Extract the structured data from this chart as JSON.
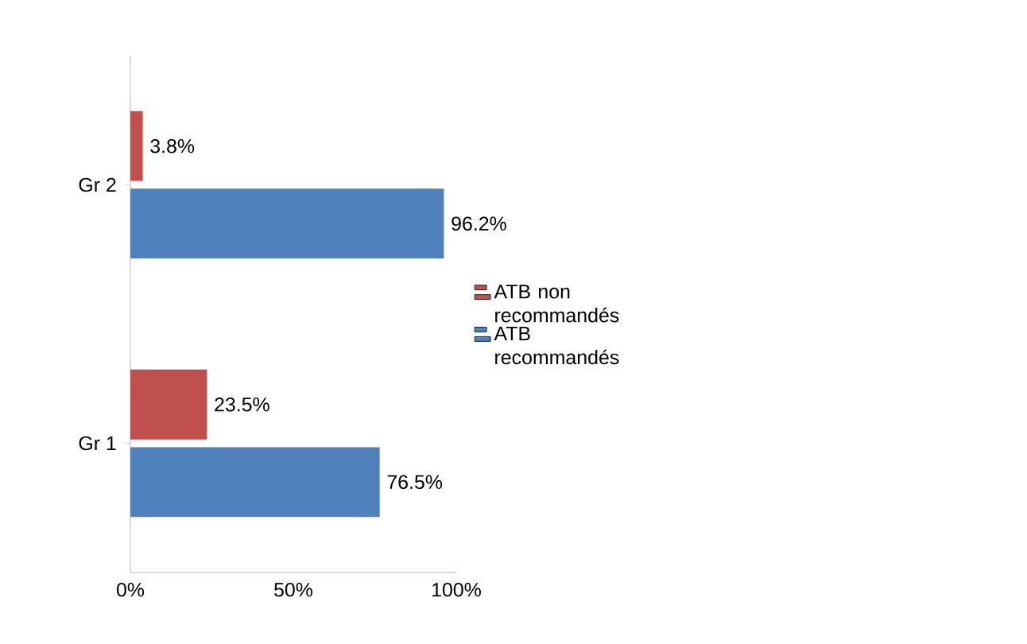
{
  "chart_data": {
    "type": "bar",
    "orientation": "horizontal",
    "categories": [
      "Gr 2",
      "Gr 1"
    ],
    "series": [
      {
        "name": "ATB non recommandés",
        "color": "#c0504d",
        "values": [
          3.8,
          23.5
        ],
        "value_labels": [
          "3.8%",
          "23.5%"
        ]
      },
      {
        "name": "ATB recommandés",
        "color": "#4f81bd",
        "values": [
          96.2,
          76.5
        ],
        "value_labels": [
          "96.2%",
          "76.5%"
        ]
      }
    ],
    "xlim": [
      0,
      100
    ],
    "xticks": [
      {
        "value": 0,
        "label": "0%"
      },
      {
        "value": 50,
        "label": "50%"
      },
      {
        "value": 100,
        "label": "100%"
      }
    ],
    "legend": "right",
    "grid": false
  }
}
